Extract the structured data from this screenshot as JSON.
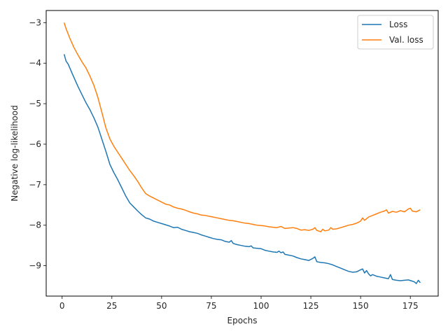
{
  "chart_data": {
    "type": "line",
    "title": "",
    "xlabel": "Epochs",
    "ylabel": "Negative log-likelihood",
    "xlim": [
      -8,
      189
    ],
    "ylim": [
      -9.75,
      -2.7
    ],
    "xticks": [
      0,
      25,
      50,
      75,
      100,
      125,
      150,
      175
    ],
    "yticks": [
      -9,
      -8,
      -7,
      -6,
      -5,
      -4,
      -3
    ],
    "xtick_labels": [
      "0",
      "25",
      "50",
      "75",
      "100",
      "125",
      "150",
      "175"
    ],
    "ytick_labels": [
      "−9",
      "−8",
      "−7",
      "−6",
      "−5",
      "−4",
      "−3"
    ],
    "grid": false,
    "legend_position": "top-right",
    "series": [
      {
        "name": "Loss",
        "color": "#1f77b4",
        "x": [
          1,
          2,
          3,
          5,
          8,
          10,
          12,
          14,
          16,
          18,
          20,
          22,
          24,
          26,
          28,
          30,
          32,
          34,
          36,
          38,
          40,
          42,
          44,
          46,
          48,
          50,
          52,
          54,
          56,
          58,
          60,
          62,
          64,
          66,
          68,
          70,
          72,
          74,
          76,
          78,
          80,
          82,
          84,
          85,
          86,
          88,
          90,
          92,
          94,
          95,
          96,
          98,
          100,
          102,
          104,
          106,
          108,
          109,
          110,
          111,
          112,
          114,
          116,
          118,
          120,
          122,
          124,
          126,
          127,
          128,
          130,
          132,
          134,
          136,
          138,
          140,
          142,
          144,
          146,
          148,
          150,
          151,
          152,
          153,
          154,
          155,
          156,
          158,
          160,
          162,
          164,
          165,
          166,
          168,
          170,
          172,
          174,
          176,
          177,
          178,
          179,
          180
        ],
        "y": [
          -3.78,
          -3.95,
          -4.02,
          -4.25,
          -4.58,
          -4.78,
          -4.98,
          -5.15,
          -5.35,
          -5.58,
          -5.88,
          -6.18,
          -6.5,
          -6.7,
          -6.88,
          -7.08,
          -7.28,
          -7.45,
          -7.55,
          -7.65,
          -7.74,
          -7.82,
          -7.85,
          -7.9,
          -7.93,
          -7.96,
          -7.99,
          -8.02,
          -8.06,
          -8.05,
          -8.1,
          -8.13,
          -8.16,
          -8.18,
          -8.2,
          -8.24,
          -8.27,
          -8.3,
          -8.33,
          -8.35,
          -8.36,
          -8.4,
          -8.42,
          -8.38,
          -8.45,
          -8.48,
          -8.5,
          -8.52,
          -8.53,
          -8.51,
          -8.56,
          -8.57,
          -8.58,
          -8.62,
          -8.64,
          -8.66,
          -8.67,
          -8.64,
          -8.68,
          -8.66,
          -8.72,
          -8.74,
          -8.76,
          -8.8,
          -8.83,
          -8.85,
          -8.87,
          -8.82,
          -8.78,
          -8.9,
          -8.92,
          -8.93,
          -8.95,
          -8.98,
          -9.02,
          -9.06,
          -9.1,
          -9.14,
          -9.16,
          -9.15,
          -9.1,
          -9.08,
          -9.18,
          -9.12,
          -9.2,
          -9.25,
          -9.22,
          -9.26,
          -9.28,
          -9.3,
          -9.32,
          -9.22,
          -9.34,
          -9.36,
          -9.37,
          -9.36,
          -9.35,
          -9.38,
          -9.4,
          -9.44,
          -9.36,
          -9.42
        ]
      },
      {
        "name": "Val. loss",
        "color": "#ff7f0e",
        "x": [
          1,
          2,
          4,
          6,
          8,
          10,
          12,
          14,
          16,
          18,
          20,
          22,
          24,
          26,
          28,
          30,
          32,
          34,
          36,
          38,
          40,
          42,
          44,
          46,
          48,
          50,
          52,
          54,
          56,
          58,
          60,
          62,
          64,
          66,
          68,
          70,
          72,
          74,
          76,
          78,
          80,
          82,
          84,
          86,
          88,
          90,
          92,
          94,
          96,
          98,
          100,
          102,
          104,
          106,
          108,
          110,
          112,
          114,
          116,
          118,
          120,
          122,
          124,
          126,
          127,
          128,
          130,
          131,
          132,
          134,
          135,
          136,
          138,
          140,
          142,
          144,
          146,
          148,
          150,
          151,
          152,
          154,
          156,
          158,
          160,
          162,
          163,
          164,
          166,
          168,
          170,
          172,
          174,
          175,
          176,
          178,
          180
        ],
        "y": [
          -3.0,
          -3.15,
          -3.4,
          -3.62,
          -3.8,
          -3.97,
          -4.12,
          -4.32,
          -4.55,
          -4.85,
          -5.22,
          -5.6,
          -5.87,
          -6.05,
          -6.2,
          -6.35,
          -6.5,
          -6.65,
          -6.78,
          -6.92,
          -7.08,
          -7.22,
          -7.28,
          -7.33,
          -7.38,
          -7.43,
          -7.48,
          -7.5,
          -7.55,
          -7.58,
          -7.6,
          -7.63,
          -7.67,
          -7.7,
          -7.72,
          -7.75,
          -7.76,
          -7.78,
          -7.8,
          -7.82,
          -7.84,
          -7.86,
          -7.88,
          -7.89,
          -7.91,
          -7.93,
          -7.95,
          -7.96,
          -7.98,
          -8.0,
          -8.01,
          -8.02,
          -8.04,
          -8.05,
          -8.06,
          -8.03,
          -8.08,
          -8.07,
          -8.06,
          -8.08,
          -8.12,
          -8.11,
          -8.13,
          -8.1,
          -8.06,
          -8.13,
          -8.16,
          -8.1,
          -8.14,
          -8.12,
          -8.06,
          -8.1,
          -8.09,
          -8.06,
          -8.03,
          -8.0,
          -7.98,
          -7.95,
          -7.9,
          -7.82,
          -7.88,
          -7.8,
          -7.76,
          -7.72,
          -7.68,
          -7.65,
          -7.62,
          -7.7,
          -7.66,
          -7.68,
          -7.64,
          -7.67,
          -7.6,
          -7.58,
          -7.65,
          -7.67,
          -7.62
        ]
      }
    ]
  }
}
